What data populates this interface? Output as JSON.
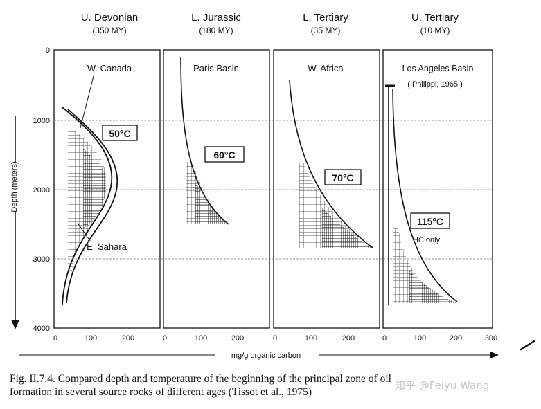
{
  "figure": {
    "y_axis_label": "Depth (meters)",
    "x_axis_label": "mg/g organic carbon",
    "y_ticks": [
      "0",
      "1000",
      "2000",
      "3000",
      "4000"
    ],
    "panels": [
      {
        "age": "U. Devonian",
        "age_years": "(350 MY)",
        "locations": [
          "W. Canada",
          "E. Sahara"
        ],
        "temperature": "50°C",
        "x_ticks": [
          "0",
          "100",
          "200"
        ]
      },
      {
        "age": "L. Jurassic",
        "age_years": "(180 MY)",
        "locations": [
          "Paris Basin"
        ],
        "temperature": "60°C",
        "x_ticks": [
          "0",
          "100",
          "200"
        ]
      },
      {
        "age": "L. Tertiary",
        "age_years": "(35 MY)",
        "locations": [
          "W. Africa"
        ],
        "temperature": "70°C",
        "x_ticks": [
          "0",
          "100",
          "200"
        ]
      },
      {
        "age": "U. Tertiary",
        "age_years": "(10 MY)",
        "locations": [
          "Los Angeles Basin",
          "( Philippi, 1965 )"
        ],
        "temperature": "115°C",
        "note": "HC only",
        "x_ticks": [
          "0",
          "100",
          "200",
          "300"
        ]
      }
    ]
  },
  "caption": {
    "line1": "Fig. II.7.4.  Compared depth and temperature of the beginning of the principal zone of oil",
    "line2": "formation in several source rocks of different ages (Tissot et al., 1975)"
  },
  "watermark": "知乎 @Feiyu Wang"
}
